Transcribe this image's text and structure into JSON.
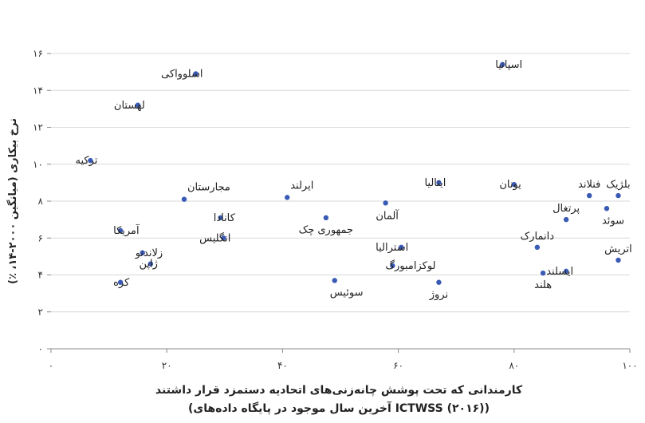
{
  "chart_data": {
    "type": "scatter",
    "title": "",
    "xlabel_line1": "کارمندانی که تحت پوشش چانه‌زنی‌های اتحادیه دستمزد قرار داشتند",
    "xlabel_line2": "((۲۰۱۶) ICTWSS آخرین سال موجود در پایگاه داده‌های)",
    "ylabel": "نرخ بیکاری (میانگین ۲۰۰۰-۱۴، ٪)",
    "xlim": [
      0,
      100
    ],
    "ylim": [
      0,
      16
    ],
    "x_ticks": [
      {
        "value": 0,
        "label": "۰"
      },
      {
        "value": 20,
        "label": "۲۰"
      },
      {
        "value": 40,
        "label": "۴۰"
      },
      {
        "value": 60,
        "label": "۶۰"
      },
      {
        "value": 80,
        "label": "۸۰"
      },
      {
        "value": 100,
        "label": "۱۰۰"
      }
    ],
    "y_ticks": [
      {
        "value": 0,
        "label": "۰"
      },
      {
        "value": 2,
        "label": "۲"
      },
      {
        "value": 4,
        "label": "۴"
      },
      {
        "value": 6,
        "label": "۶"
      },
      {
        "value": 8,
        "label": "۸"
      },
      {
        "value": 10,
        "label": "۱۰"
      },
      {
        "value": 12,
        "label": "۱۲"
      },
      {
        "value": 14,
        "label": "۱۴"
      },
      {
        "value": 16,
        "label": "۱۶"
      }
    ],
    "grid": "horizontal",
    "marker_color": "#3a5bb5",
    "points": [
      {
        "label": "اسپانیا",
        "x": 78.0,
        "y": 15.4,
        "pos": "left"
      },
      {
        "label": "اسلوواکی",
        "x": 25.0,
        "y": 14.9,
        "pos": "right"
      },
      {
        "label": "لهستان",
        "x": 15.0,
        "y": 13.2,
        "pos": "right"
      },
      {
        "label": "ترکیه",
        "x": 6.8,
        "y": 10.2,
        "pos": "right"
      },
      {
        "label": "مجارستان",
        "x": 23.0,
        "y": 8.1,
        "pos": "above-right"
      },
      {
        "label": "ایرلند",
        "x": 40.8,
        "y": 8.2,
        "pos": "above-right"
      },
      {
        "label": "ایتالیا",
        "x": 67.0,
        "y": 9.0,
        "pos": "right"
      },
      {
        "label": "یونان",
        "x": 80.0,
        "y": 8.9,
        "pos": "right"
      },
      {
        "label": "فنلاند",
        "x": 93.0,
        "y": 8.3,
        "pos": "above"
      },
      {
        "label": "بلژیک",
        "x": 98.0,
        "y": 8.3,
        "pos": "above"
      },
      {
        "label": "آلمان",
        "x": 57.8,
        "y": 7.9,
        "pos": "below-right"
      },
      {
        "label": "کانادا",
        "x": 29.3,
        "y": 7.1,
        "pos": "left"
      },
      {
        "label": "جمهوری چک",
        "x": 47.5,
        "y": 7.1,
        "pos": "below"
      },
      {
        "label": "پرتغال",
        "x": 89.0,
        "y": 7.0,
        "pos": "above"
      },
      {
        "label": "سوئد",
        "x": 96.0,
        "y": 7.6,
        "pos": "below-left"
      },
      {
        "label": "آمریکا",
        "x": 12.0,
        "y": 6.4,
        "pos": "left"
      },
      {
        "label": "انگلیس",
        "x": 29.8,
        "y": 6.0,
        "pos": "right"
      },
      {
        "label": "استرالیا",
        "x": 60.5,
        "y": 5.5,
        "pos": "right"
      },
      {
        "label": "دانمارک",
        "x": 84.0,
        "y": 5.5,
        "pos": "above"
      },
      {
        "label": "اتریش",
        "x": 98.0,
        "y": 4.8,
        "pos": "above"
      },
      {
        "label": "زلاندنو",
        "x": 15.8,
        "y": 5.2,
        "pos": "left"
      },
      {
        "label": "ژاپن",
        "x": 17.2,
        "y": 4.6,
        "pos": "right"
      },
      {
        "label": "لوکزامبورگ",
        "x": 59.0,
        "y": 4.5,
        "pos": "left"
      },
      {
        "label": "ایسلند",
        "x": 89.0,
        "y": 4.2,
        "pos": "right"
      },
      {
        "label": "هلند",
        "x": 85.0,
        "y": 4.1,
        "pos": "below"
      },
      {
        "label": "کره",
        "x": 12.0,
        "y": 3.6,
        "pos": "left"
      },
      {
        "label": "سوئیس",
        "x": 49.0,
        "y": 3.7,
        "pos": "below-left"
      },
      {
        "label": "نروژ",
        "x": 67.0,
        "y": 3.6,
        "pos": "below"
      }
    ]
  }
}
